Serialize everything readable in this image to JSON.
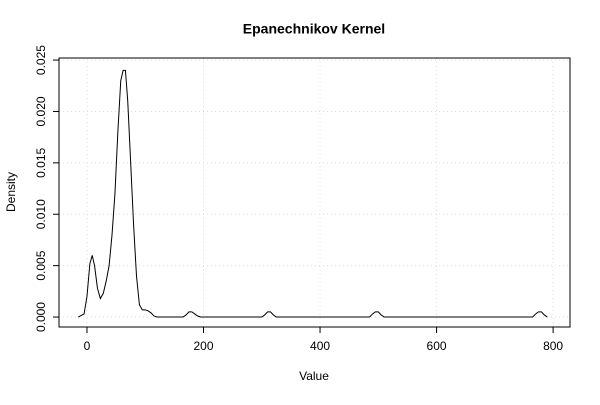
{
  "chart_data": {
    "type": "line",
    "title": "Epanechnikov Kernel",
    "x_label": "Value",
    "y_label": "Density",
    "series": [
      {
        "name": "density",
        "color": "#000000",
        "x": [
          -15,
          -5,
          0,
          5,
          9,
          13,
          18,
          23,
          28,
          33,
          38,
          43,
          48,
          53,
          58,
          62,
          66,
          70,
          75,
          80,
          85,
          90,
          95,
          100,
          105,
          110,
          115,
          120,
          165,
          170,
          175,
          180,
          185,
          190,
          195,
          300,
          305,
          310,
          315,
          320,
          325,
          485,
          490,
          495,
          500,
          505,
          510,
          765,
          770,
          775,
          780,
          785,
          790
        ],
        "values": [
          0,
          0.0003,
          0.002,
          0.0052,
          0.006,
          0.005,
          0.0028,
          0.0018,
          0.0023,
          0.0035,
          0.005,
          0.008,
          0.012,
          0.018,
          0.023,
          0.024,
          0.024,
          0.021,
          0.015,
          0.009,
          0.004,
          0.0012,
          0.0007,
          0.0007,
          0.0006,
          0.0004,
          0.0001,
          0,
          0,
          0.0002,
          0.0005,
          0.0005,
          0.0003,
          0.0001,
          0,
          0,
          0.0002,
          0.0005,
          0.0005,
          0.0002,
          0,
          0,
          0.0003,
          0.0005,
          0.0005,
          0.0002,
          0,
          0,
          0.0003,
          0.0005,
          0.0005,
          0.0002,
          0
        ]
      }
    ],
    "xlim": [
      -48,
      829
    ],
    "ylim": [
      -0.00097,
      0.0252
    ],
    "xticks": [
      0,
      200,
      400,
      600,
      800
    ],
    "yticks": [
      {
        "value": 0,
        "label": "0.000"
      },
      0.005,
      {
        "value": 0.01,
        "label": "0.010"
      },
      0.015,
      {
        "value": 0.02,
        "label": "0.020"
      },
      0.025
    ],
    "grid": true
  }
}
